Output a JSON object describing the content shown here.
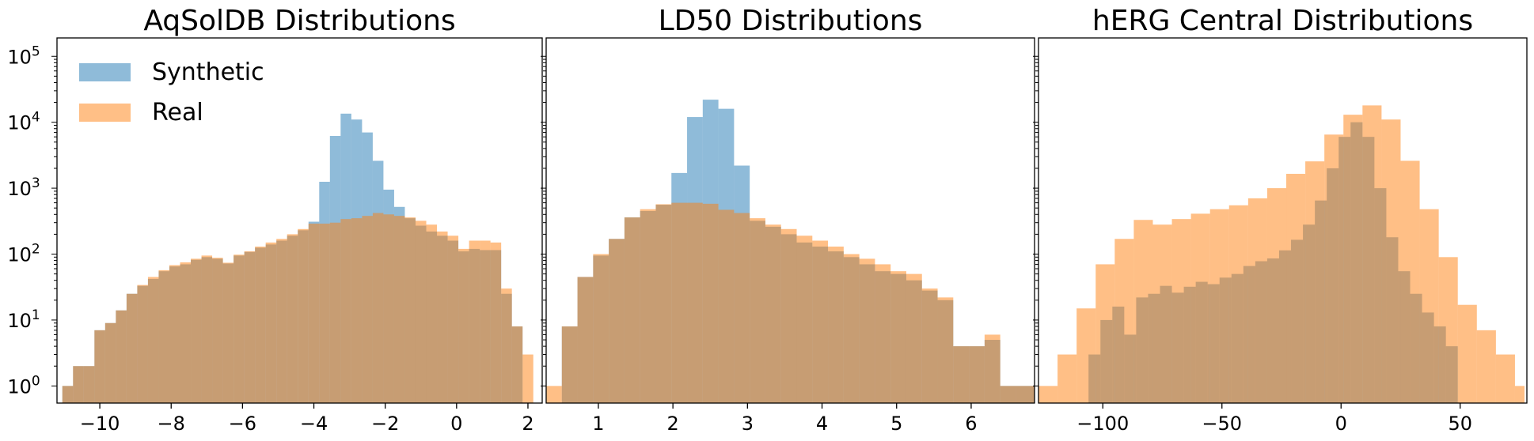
{
  "colors": {
    "synthetic": "#1f77b4",
    "real": "#ff7f0e",
    "bar_opacity": 0.5,
    "axes": "#000000"
  },
  "legend": {
    "location": "top-left of first panel",
    "items": [
      {
        "label": "Synthetic",
        "color": "#1f77b4"
      },
      {
        "label": "Real",
        "color": "#ff7f0e"
      }
    ]
  },
  "chart_data": [
    {
      "type": "histogram",
      "title": "AqSolDB Distributions",
      "yscale": "log",
      "xlim": [
        -11.2,
        2.4
      ],
      "ylim": [
        0.55,
        190000
      ],
      "xticks": [
        {
          "value": -10,
          "label": "−10"
        },
        {
          "value": -8,
          "label": "−8"
        },
        {
          "value": -6,
          "label": "−6"
        },
        {
          "value": -4,
          "label": "−4"
        },
        {
          "value": -2,
          "label": "−2"
        },
        {
          "value": 0,
          "label": "0"
        },
        {
          "value": 2,
          "label": "2"
        }
      ],
      "yticks": [
        {
          "value": 1,
          "base": "10",
          "exp": "0"
        },
        {
          "value": 10,
          "base": "10",
          "exp": "1"
        },
        {
          "value": 100,
          "base": "10",
          "exp": "2"
        },
        {
          "value": 1000,
          "base": "10",
          "exp": "3"
        },
        {
          "value": 10000,
          "base": "10",
          "exp": "4"
        },
        {
          "value": 100000,
          "base": "10",
          "exp": "5"
        }
      ],
      "series": [
        {
          "name": "Synthetic",
          "bin_edges": [
            -11.05,
            -10.75,
            -10.45,
            -10.15,
            -9.85,
            -9.55,
            -9.25,
            -8.95,
            -8.65,
            -8.35,
            -8.05,
            -7.75,
            -7.45,
            -7.15,
            -6.85,
            -6.55,
            -6.25,
            -5.95,
            -5.65,
            -5.35,
            -5.05,
            -4.75,
            -4.45,
            -4.15,
            -3.85,
            -3.55,
            -3.25,
            -2.95,
            -2.65,
            -2.35,
            -2.05,
            -1.75,
            -1.45,
            -1.15,
            -0.85,
            -0.55,
            -0.25,
            0.05,
            0.35,
            0.65,
            0.95,
            1.25,
            1.55,
            1.85
          ],
          "counts": [
            1,
            2,
            2,
            7,
            9,
            14,
            25,
            33,
            42,
            55,
            65,
            70,
            82,
            90,
            85,
            72,
            95,
            108,
            125,
            140,
            160,
            190,
            230,
            310,
            1250,
            6200,
            13500,
            11000,
            7000,
            2600,
            950,
            520,
            350,
            270,
            220,
            190,
            160,
            110,
            120,
            115,
            115,
            25,
            8
          ]
        },
        {
          "name": "Real",
          "bin_edges": [
            -11.05,
            -10.75,
            -10.45,
            -10.15,
            -9.85,
            -9.55,
            -9.25,
            -8.95,
            -8.65,
            -8.35,
            -8.05,
            -7.75,
            -7.45,
            -7.15,
            -6.85,
            -6.55,
            -6.25,
            -5.95,
            -5.65,
            -5.35,
            -5.05,
            -4.75,
            -4.45,
            -4.15,
            -3.85,
            -3.55,
            -3.25,
            -2.95,
            -2.65,
            -2.35,
            -2.05,
            -1.75,
            -1.45,
            -1.15,
            -0.85,
            -0.55,
            -0.25,
            0.05,
            0.35,
            0.65,
            0.95,
            1.25,
            1.55,
            1.85,
            2.15
          ],
          "counts": [
            1,
            2,
            2,
            7,
            9,
            14,
            25,
            34,
            45,
            57,
            68,
            75,
            85,
            95,
            88,
            74,
            98,
            110,
            130,
            150,
            170,
            200,
            240,
            290,
            290,
            300,
            340,
            350,
            380,
            420,
            400,
            380,
            360,
            320,
            280,
            220,
            190,
            120,
            160,
            160,
            150,
            30,
            8,
            3
          ]
        }
      ]
    },
    {
      "type": "histogram",
      "title": "LD50 Distributions",
      "yscale": "log",
      "xlim": [
        0.3,
        6.85
      ],
      "ylim": [
        0.55,
        190000
      ],
      "xticks": [
        {
          "value": 1,
          "label": "1"
        },
        {
          "value": 2,
          "label": "2"
        },
        {
          "value": 3,
          "label": "3"
        },
        {
          "value": 4,
          "label": "4"
        },
        {
          "value": 5,
          "label": "5"
        },
        {
          "value": 6,
          "label": "6"
        }
      ],
      "series": [
        {
          "name": "Synthetic",
          "bin_edges": [
            0.3,
            0.51,
            0.72,
            0.93,
            1.14,
            1.35,
            1.56,
            1.77,
            1.98,
            2.19,
            2.4,
            2.61,
            2.82,
            3.03,
            3.24,
            3.45,
            3.66,
            3.87,
            4.08,
            4.29,
            4.5,
            4.71,
            4.92,
            5.13,
            5.34,
            5.55,
            5.76,
            5.97,
            6.18,
            6.39,
            6.6,
            6.85
          ],
          "counts": [
            0,
            8,
            45,
            95,
            170,
            360,
            450,
            560,
            1700,
            12000,
            22000,
            16000,
            2200,
            320,
            260,
            200,
            150,
            130,
            110,
            90,
            70,
            55,
            50,
            40,
            28,
            20,
            4,
            4,
            5,
            1,
            1
          ]
        },
        {
          "name": "Real",
          "bin_edges": [
            0.3,
            0.51,
            0.72,
            0.93,
            1.14,
            1.35,
            1.56,
            1.77,
            1.98,
            2.19,
            2.4,
            2.61,
            2.82,
            3.03,
            3.24,
            3.45,
            3.66,
            3.87,
            4.08,
            4.29,
            4.5,
            4.71,
            4.92,
            5.13,
            5.34,
            5.55,
            5.76,
            5.97,
            6.18,
            6.39,
            6.6,
            6.85
          ],
          "counts": [
            1,
            8,
            45,
            100,
            170,
            360,
            480,
            570,
            600,
            600,
            580,
            470,
            420,
            350,
            280,
            240,
            190,
            160,
            130,
            100,
            85,
            70,
            55,
            50,
            30,
            22,
            4,
            4,
            6,
            1,
            1
          ]
        }
      ]
    },
    {
      "type": "histogram",
      "title": "hERG Central Distributions",
      "yscale": "log",
      "xlim": [
        -127,
        78
      ],
      "ylim": [
        0.55,
        190000
      ],
      "xticks": [
        {
          "value": -100,
          "label": "−100"
        },
        {
          "value": -50,
          "label": "−50"
        },
        {
          "value": 0,
          "label": "0"
        },
        {
          "value": 50,
          "label": "50"
        }
      ],
      "series": [
        {
          "name": "Synthetic",
          "bin_edges": [
            -106,
            -101,
            -96,
            -91,
            -86,
            -81,
            -76,
            -71,
            -66,
            -61,
            -56,
            -51,
            -46,
            -41,
            -36,
            -31,
            -26,
            -21,
            -16,
            -11,
            -6,
            -1,
            4,
            9,
            14,
            19,
            24,
            29,
            34,
            39,
            44,
            49
          ],
          "counts": [
            3,
            10,
            16,
            6,
            22,
            25,
            33,
            26,
            32,
            38,
            35,
            44,
            50,
            66,
            78,
            86,
            114,
            165,
            280,
            650,
            2000,
            6000,
            10000,
            6000,
            1000,
            180,
            55,
            25,
            13,
            8,
            4
          ]
        },
        {
          "name": "Real",
          "bin_edges": [
            -127,
            -119,
            -111,
            -103,
            -95,
            -87,
            -79,
            -71,
            -63,
            -55,
            -47,
            -39,
            -31,
            -23,
            -15,
            -7,
            1,
            9,
            17,
            25,
            33,
            41,
            49,
            57,
            65,
            73,
            77
          ],
          "counts": [
            1,
            3,
            15,
            70,
            170,
            330,
            280,
            340,
            410,
            480,
            550,
            700,
            1000,
            1650,
            2550,
            6500,
            13000,
            18000,
            11000,
            2600,
            480,
            90,
            17,
            7,
            3,
            1
          ]
        }
      ]
    }
  ]
}
